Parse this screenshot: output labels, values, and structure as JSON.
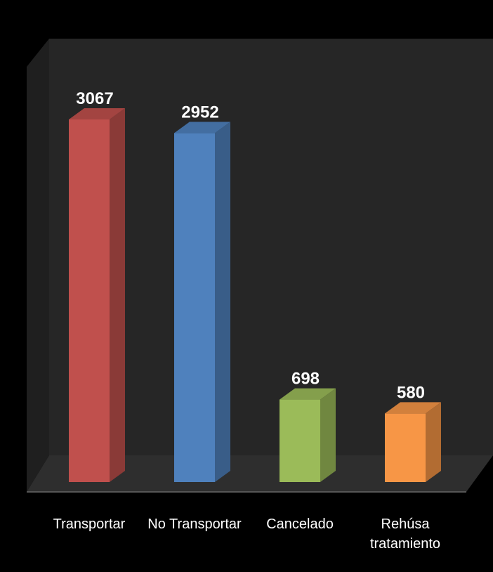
{
  "chart_data": {
    "type": "bar",
    "categories": [
      "Transportar",
      "No Transportar",
      "Cancelado",
      "Rehúsa tratamiento"
    ],
    "values": [
      3067,
      2952,
      698,
      580
    ],
    "title": "",
    "xlabel": "",
    "ylabel": "",
    "ylim": [
      0,
      3067
    ],
    "grid": false,
    "legend": "none",
    "colors": {
      "bars": [
        "#c0504d",
        "#4f81bd",
        "#9bbb59",
        "#f79646"
      ],
      "background": "#000000",
      "wall": "#262626",
      "floor": "#2e2e2e",
      "text": "#ffffff"
    }
  }
}
